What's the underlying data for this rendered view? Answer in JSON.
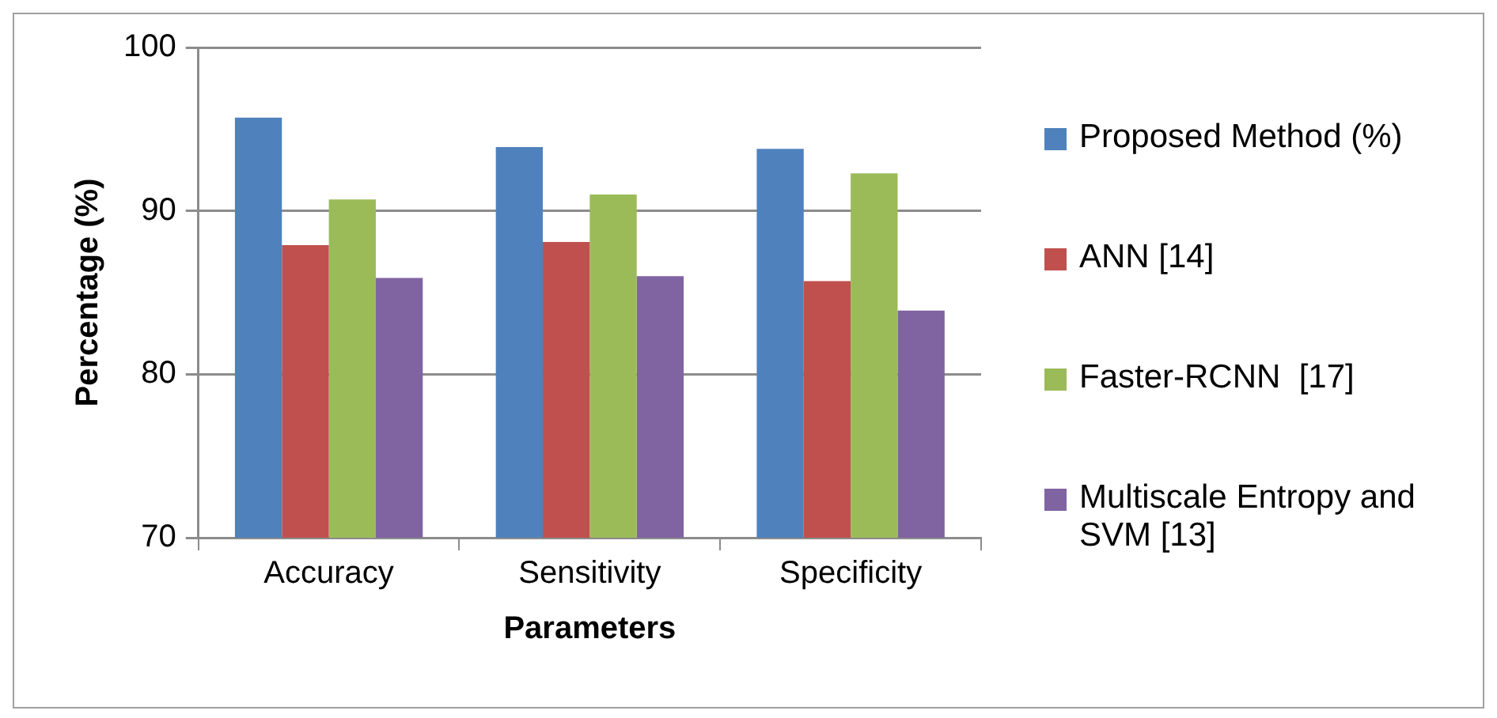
{
  "chart_data": {
    "type": "bar",
    "xlabel": "Parameters",
    "ylabel": "Percentage (%)",
    "categories": [
      "Accuracy",
      "Sensitivity",
      "Specificity"
    ],
    "series": [
      {
        "name": "Proposed Method (%)",
        "color": "#4f81bd",
        "values": [
          95.7,
          93.9,
          93.8
        ]
      },
      {
        "name": "ANN [14]",
        "color": "#c0504d",
        "values": [
          87.9,
          88.1,
          85.7
        ]
      },
      {
        "name": "Faster-RCNN  [17]",
        "color": "#9bbb59",
        "values": [
          90.7,
          91.0,
          92.3
        ]
      },
      {
        "name": "Multiscale Entropy and SVM [13]",
        "color": "#8064a2",
        "values": [
          85.9,
          86.0,
          83.9
        ]
      }
    ],
    "ylim": [
      70,
      100
    ],
    "yticks": [
      70,
      80,
      90,
      100
    ],
    "grid": "y",
    "legend": "right"
  }
}
